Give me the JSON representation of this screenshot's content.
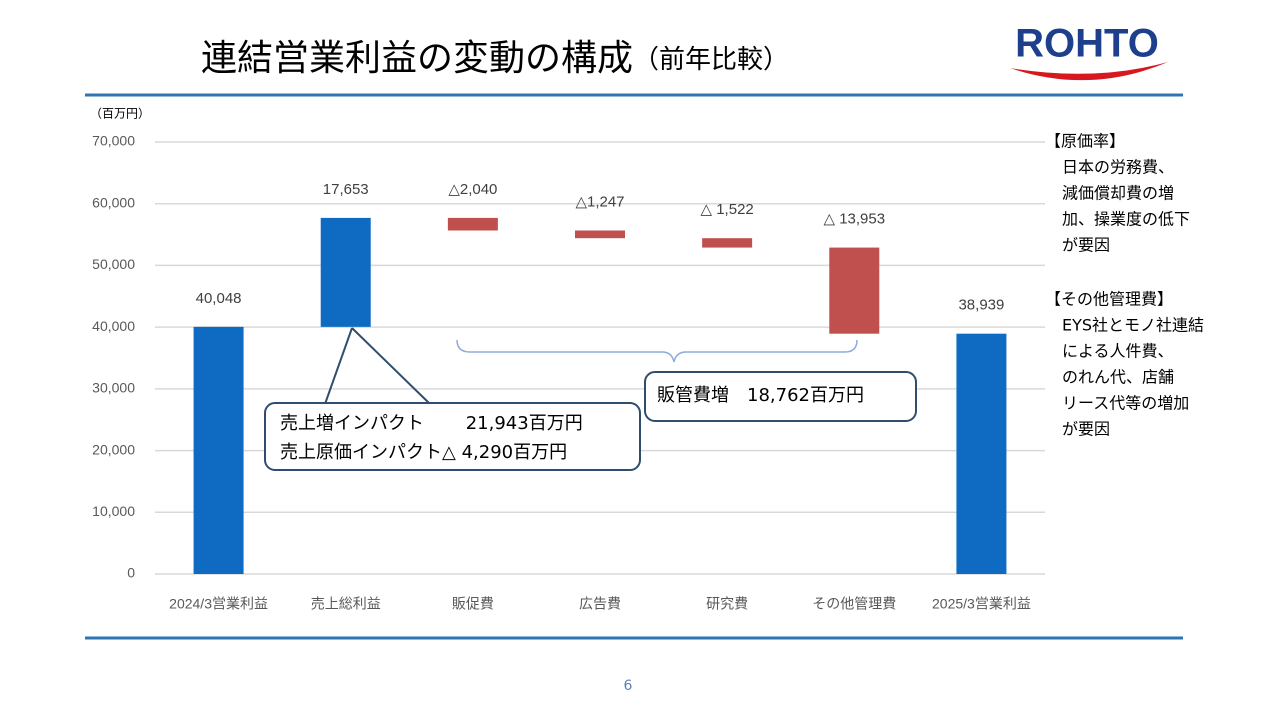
{
  "logo": "ROHTO",
  "page_number": "6",
  "chart_data": {
    "type": "waterfall",
    "title": "連結営業利益の変動の構成",
    "subtitle": "（前年比較）",
    "y_label": "（百万円）",
    "categories": [
      "2024/3営業利益",
      "売上総利益",
      "販促費",
      "広告費",
      "研究費",
      "その他管理費",
      "2025/3営業利益"
    ],
    "values": [
      40048,
      17653,
      -2040,
      -1247,
      -1522,
      -13953,
      38939
    ],
    "value_labels": [
      "40,048",
      "17,653",
      "△2,040",
      "△1,247",
      "△ 1,522",
      "△ 13,953",
      "38,939"
    ],
    "color": "#0e6bc1",
    "negative_color": "#c0504d",
    "ylim": [
      0,
      70000
    ],
    "yticks": [
      0,
      {
        "value": 10000,
        "label": "10,000"
      },
      {
        "value": 20000,
        "label": "20,000"
      },
      {
        "value": 30000,
        "label": "30,000"
      },
      {
        "value": 40000,
        "label": "40,000"
      },
      {
        "value": 50000,
        "label": "50,000"
      },
      {
        "value": 60000,
        "label": "60,000"
      },
      {
        "value": 70000,
        "label": "70,000"
      }
    ],
    "grid": true,
    "annotations": {
      "gross_profit": [
        "売上増インパクト　　 21,943百万円",
        "売上原価インパクト△ 4,290百万円"
      ],
      "sga": "販管費増　18,762百万円"
    },
    "notes": [
      {
        "heading": "【原価率】",
        "lines": [
          "日本の労務費、",
          "減価償却費の増",
          "加、操業度の低下",
          "が要因"
        ]
      },
      {
        "heading": "【その他管理費】",
        "lines": [
          "EYS社とモノ社連結",
          "による人件費、",
          "のれん代、店舗",
          "リース代等の増加",
          "が要因"
        ]
      }
    ]
  }
}
